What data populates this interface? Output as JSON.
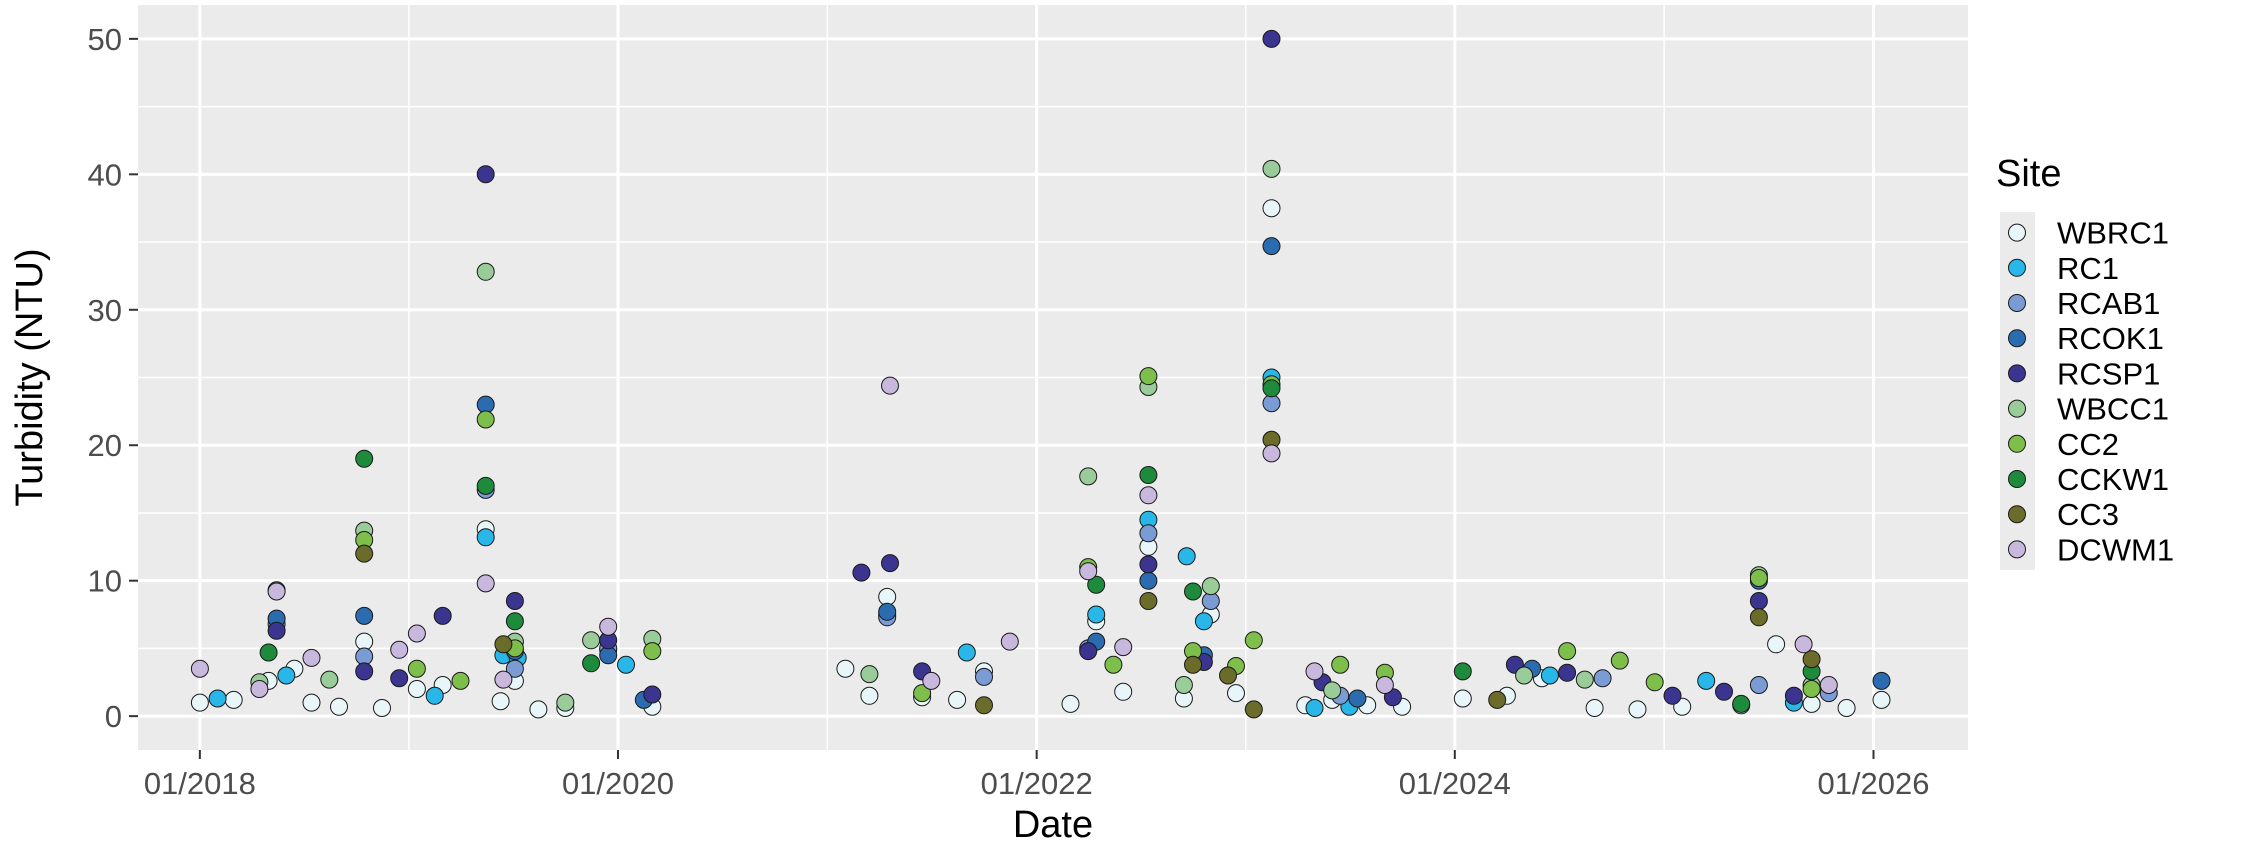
{
  "chart_data": {
    "type": "scatter",
    "xlabel": "Date",
    "ylabel": "Turbidity (NTU)",
    "x_ticks": [
      "01/2018",
      "01/2020",
      "01/2022",
      "01/2024",
      "01/2026"
    ],
    "y_ticks": [
      "0",
      "10",
      "20",
      "30",
      "40",
      "50"
    ],
    "xlim": [
      "2017-09-15",
      "2026-06-15"
    ],
    "ylim": [
      -2.5,
      52.5
    ],
    "grid": true,
    "legend": {
      "title": "Site",
      "position": "right"
    },
    "colors": {
      "panel": "#EBEBEB",
      "grid_major": "#FFFFFF",
      "marker_stroke": "#1a1a1a"
    },
    "series": [
      {
        "name": "WBRC1",
        "color": "#E8F6FA",
        "points": [
          [
            "2018-01-01",
            1.0
          ],
          [
            "2018-03-01",
            1.2
          ],
          [
            "2018-05-01",
            2.6
          ],
          [
            "2018-06-15",
            3.5
          ],
          [
            "2018-07-15",
            1.0
          ],
          [
            "2018-09-01",
            0.7
          ],
          [
            "2018-10-15",
            5.5
          ],
          [
            "2018-11-15",
            0.6
          ],
          [
            "2019-01-15",
            2.0
          ],
          [
            "2019-03-01",
            2.3
          ],
          [
            "2019-05-15",
            13.8
          ],
          [
            "2019-06-10",
            1.1
          ],
          [
            "2019-07-05",
            2.6
          ],
          [
            "2019-08-15",
            0.5
          ],
          [
            "2019-10-01",
            0.6
          ],
          [
            "2019-12-15",
            4.9
          ],
          [
            "2020-03-01",
            0.7
          ],
          [
            "2021-02-01",
            3.5
          ],
          [
            "2021-03-15",
            1.5
          ],
          [
            "2021-04-15",
            8.8
          ],
          [
            "2021-06-15",
            1.4
          ],
          [
            "2021-08-15",
            1.2
          ],
          [
            "2021-10-01",
            3.3
          ],
          [
            "2022-03-01",
            0.9
          ],
          [
            "2022-04-15",
            7.0
          ],
          [
            "2022-06-01",
            1.8
          ],
          [
            "2022-07-15",
            12.5
          ],
          [
            "2022-09-15",
            1.3
          ],
          [
            "2022-11-01",
            7.5
          ],
          [
            "2022-12-15",
            1.7
          ],
          [
            "2023-02-15",
            37.5
          ],
          [
            "2023-04-15",
            0.8
          ],
          [
            "2023-06-01",
            1.2
          ],
          [
            "2023-08-01",
            0.8
          ],
          [
            "2023-10-01",
            0.7
          ],
          [
            "2024-01-15",
            1.3
          ],
          [
            "2024-04-01",
            1.5
          ],
          [
            "2024-06-01",
            2.8
          ],
          [
            "2024-09-01",
            0.6
          ],
          [
            "2024-11-15",
            0.5
          ],
          [
            "2025-02-01",
            0.7
          ],
          [
            "2025-05-15",
            0.8
          ],
          [
            "2025-07-15",
            5.3
          ],
          [
            "2025-09-15",
            0.9
          ],
          [
            "2025-11-15",
            0.6
          ],
          [
            "2026-01-15",
            1.2
          ]
        ]
      },
      {
        "name": "RC1",
        "color": "#29B6E8",
        "points": [
          [
            "2018-02-01",
            1.3
          ],
          [
            "2018-06-01",
            3.0
          ],
          [
            "2019-02-15",
            1.5
          ],
          [
            "2019-05-15",
            13.2
          ],
          [
            "2019-06-15",
            4.5
          ],
          [
            "2019-07-10",
            4.3
          ],
          [
            "2020-01-15",
            3.8
          ],
          [
            "2021-04-15",
            7.5
          ],
          [
            "2021-09-01",
            4.7
          ],
          [
            "2022-04-15",
            7.5
          ],
          [
            "2022-07-15",
            14.5
          ],
          [
            "2022-09-20",
            11.8
          ],
          [
            "2022-10-20",
            7.0
          ],
          [
            "2023-02-15",
            25.0
          ],
          [
            "2023-05-01",
            0.6
          ],
          [
            "2023-07-01",
            0.7
          ],
          [
            "2024-06-15",
            3.0
          ],
          [
            "2025-03-15",
            2.6
          ],
          [
            "2025-08-15",
            1.0
          ]
        ]
      },
      {
        "name": "RCAB1",
        "color": "#7B9BD4",
        "points": [
          [
            "2018-05-15",
            6.8
          ],
          [
            "2018-10-15",
            4.4
          ],
          [
            "2019-05-15",
            16.7
          ],
          [
            "2019-07-05",
            3.5
          ],
          [
            "2019-12-15",
            5.0
          ],
          [
            "2021-04-15",
            7.3
          ],
          [
            "2021-10-01",
            2.9
          ],
          [
            "2022-04-01",
            5.0
          ],
          [
            "2022-07-15",
            13.5
          ],
          [
            "2022-11-01",
            8.5
          ],
          [
            "2023-02-15",
            23.1
          ],
          [
            "2023-06-15",
            1.5
          ],
          [
            "2024-09-15",
            2.8
          ],
          [
            "2025-06-15",
            2.3
          ],
          [
            "2025-10-15",
            1.7
          ]
        ]
      },
      {
        "name": "RCOK1",
        "color": "#2B6CB0",
        "points": [
          [
            "2018-05-15",
            7.2
          ],
          [
            "2018-10-15",
            7.4
          ],
          [
            "2019-05-15",
            23.0
          ],
          [
            "2019-07-05",
            4.8
          ],
          [
            "2019-12-15",
            4.5
          ],
          [
            "2020-02-15",
            1.2
          ],
          [
            "2021-04-15",
            7.7
          ],
          [
            "2022-04-15",
            5.5
          ],
          [
            "2022-07-15",
            10.0
          ],
          [
            "2022-10-20",
            4.5
          ],
          [
            "2023-02-15",
            34.7
          ],
          [
            "2023-07-15",
            1.3
          ],
          [
            "2024-05-15",
            3.5
          ],
          [
            "2025-06-15",
            10.0
          ],
          [
            "2026-01-15",
            2.6
          ]
        ]
      },
      {
        "name": "RCSP1",
        "color": "#3B3590",
        "points": [
          [
            "2018-05-15",
            6.3
          ],
          [
            "2018-10-15",
            3.3
          ],
          [
            "2018-12-15",
            2.8
          ],
          [
            "2019-03-01",
            7.4
          ],
          [
            "2019-05-15",
            40.0
          ],
          [
            "2019-07-05",
            8.5
          ],
          [
            "2019-12-15",
            5.6
          ],
          [
            "2020-03-01",
            1.6
          ],
          [
            "2021-03-01",
            10.6
          ],
          [
            "2021-04-20",
            11.3
          ],
          [
            "2021-06-15",
            3.3
          ],
          [
            "2022-04-01",
            4.8
          ],
          [
            "2022-07-15",
            11.2
          ],
          [
            "2022-10-20",
            4.0
          ],
          [
            "2023-02-15",
            50.0
          ],
          [
            "2023-05-15",
            2.5
          ],
          [
            "2023-09-15",
            1.4
          ],
          [
            "2024-04-15",
            3.8
          ],
          [
            "2024-07-15",
            3.2
          ],
          [
            "2025-01-15",
            1.5
          ],
          [
            "2025-04-15",
            1.8
          ],
          [
            "2025-06-15",
            8.5
          ],
          [
            "2025-08-15",
            1.5
          ]
        ]
      },
      {
        "name": "WBCC1",
        "color": "#9ACC9A",
        "points": [
          [
            "2018-04-15",
            2.5
          ],
          [
            "2018-08-15",
            2.7
          ],
          [
            "2018-10-15",
            13.7
          ],
          [
            "2019-05-15",
            32.8
          ],
          [
            "2019-07-05",
            5.5
          ],
          [
            "2019-10-01",
            1.0
          ],
          [
            "2019-11-15",
            5.6
          ],
          [
            "2020-03-01",
            5.7
          ],
          [
            "2021-03-15",
            3.1
          ],
          [
            "2022-04-01",
            17.7
          ],
          [
            "2022-07-15",
            24.3
          ],
          [
            "2022-09-15",
            2.3
          ],
          [
            "2022-11-01",
            9.6
          ],
          [
            "2023-02-15",
            40.4
          ],
          [
            "2023-06-01",
            1.9
          ],
          [
            "2024-05-01",
            3.0
          ],
          [
            "2024-08-15",
            2.7
          ],
          [
            "2025-06-15",
            10.4
          ],
          [
            "2025-09-15",
            2.3
          ]
        ]
      },
      {
        "name": "CC2",
        "color": "#7DBF4A",
        "points": [
          [
            "2018-05-15",
            9.3
          ],
          [
            "2018-10-15",
            13.0
          ],
          [
            "2019-01-15",
            3.5
          ],
          [
            "2019-04-01",
            2.6
          ],
          [
            "2019-05-15",
            21.9
          ],
          [
            "2019-07-05",
            5.0
          ],
          [
            "2020-03-01",
            4.8
          ],
          [
            "2021-06-15",
            1.7
          ],
          [
            "2022-04-01",
            11.0
          ],
          [
            "2022-05-15",
            3.8
          ],
          [
            "2022-07-15",
            25.1
          ],
          [
            "2022-10-01",
            4.8
          ],
          [
            "2022-12-15",
            3.7
          ],
          [
            "2023-01-15",
            5.6
          ],
          [
            "2023-02-15",
            24.5
          ],
          [
            "2023-06-15",
            3.8
          ],
          [
            "2023-09-01",
            3.2
          ],
          [
            "2024-07-15",
            4.8
          ],
          [
            "2024-10-15",
            4.1
          ],
          [
            "2024-12-15",
            2.5
          ],
          [
            "2025-06-15",
            10.2
          ],
          [
            "2025-09-15",
            2.0
          ]
        ]
      },
      {
        "name": "CCKW1",
        "color": "#1E8A3C",
        "points": [
          [
            "2018-05-01",
            4.7
          ],
          [
            "2018-10-15",
            19.0
          ],
          [
            "2019-05-15",
            17.0
          ],
          [
            "2019-07-05",
            7.0
          ],
          [
            "2019-11-15",
            3.9
          ],
          [
            "2022-04-15",
            9.7
          ],
          [
            "2022-07-15",
            17.8
          ],
          [
            "2022-10-01",
            9.2
          ],
          [
            "2023-02-15",
            24.2
          ],
          [
            "2024-01-15",
            3.3
          ],
          [
            "2025-05-15",
            0.9
          ],
          [
            "2025-09-15",
            3.3
          ]
        ]
      },
      {
        "name": "CC3",
        "color": "#6B6B2A",
        "points": [
          [
            "2018-10-15",
            12.0
          ],
          [
            "2019-06-15",
            5.3
          ],
          [
            "2021-10-01",
            0.8
          ],
          [
            "2022-07-15",
            8.5
          ],
          [
            "2022-10-01",
            3.8
          ],
          [
            "2022-12-01",
            3.0
          ],
          [
            "2023-01-15",
            0.5
          ],
          [
            "2023-02-15",
            20.4
          ],
          [
            "2024-03-15",
            1.2
          ],
          [
            "2025-06-15",
            7.3
          ],
          [
            "2025-09-15",
            4.2
          ]
        ]
      },
      {
        "name": "DCWM1",
        "color": "#C9B8DD",
        "points": [
          [
            "2018-01-01",
            3.5
          ],
          [
            "2018-04-15",
            2.0
          ],
          [
            "2018-05-15",
            9.2
          ],
          [
            "2018-07-15",
            4.3
          ],
          [
            "2018-12-15",
            4.9
          ],
          [
            "2019-01-15",
            6.1
          ],
          [
            "2019-05-15",
            9.8
          ],
          [
            "2019-06-15",
            2.7
          ],
          [
            "2019-12-15",
            6.6
          ],
          [
            "2021-04-20",
            24.4
          ],
          [
            "2021-07-01",
            2.6
          ],
          [
            "2021-11-15",
            5.5
          ],
          [
            "2022-04-01",
            10.7
          ],
          [
            "2022-06-01",
            5.1
          ],
          [
            "2022-07-15",
            16.3
          ],
          [
            "2023-02-15",
            19.4
          ],
          [
            "2023-05-01",
            3.3
          ],
          [
            "2023-09-01",
            2.3
          ],
          [
            "2025-09-01",
            5.3
          ],
          [
            "2025-10-15",
            2.3
          ]
        ]
      }
    ]
  }
}
